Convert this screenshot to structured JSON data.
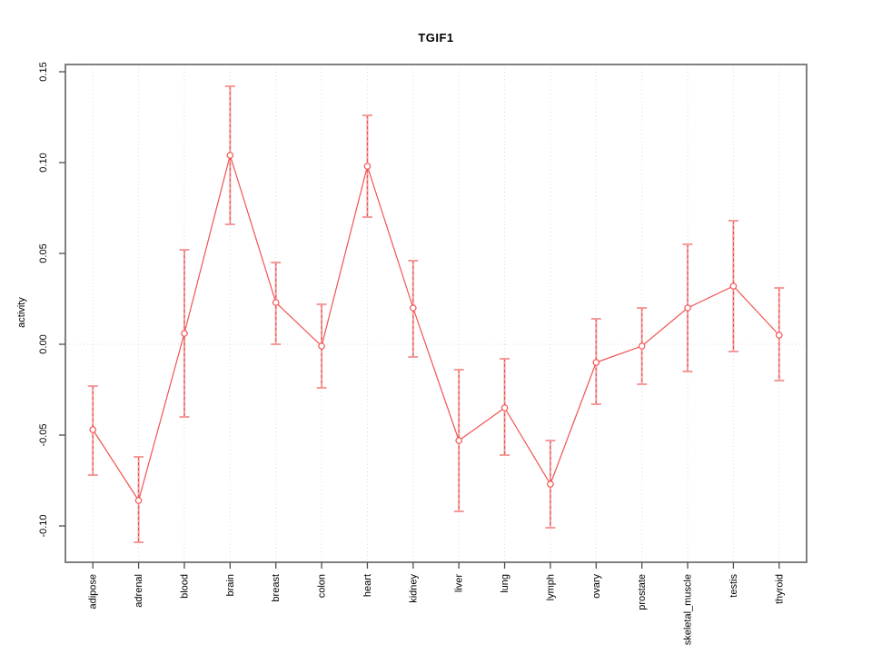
{
  "figure": {
    "title": "TGIF1"
  },
  "chart_data": {
    "type": "line",
    "title": "TGIF1",
    "xlabel": "",
    "ylabel": "activity",
    "categories": [
      "adipose",
      "adrenal",
      "blood",
      "brain",
      "breast",
      "colon",
      "heart",
      "kidney",
      "liver",
      "lung",
      "lymph",
      "ovary",
      "prostate",
      "skeletal_muscle",
      "testis",
      "thyroid"
    ],
    "series": [
      {
        "name": "TGIF1",
        "values": [
          -0.047,
          -0.086,
          0.006,
          0.104,
          0.023,
          -0.001,
          0.098,
          0.02,
          -0.053,
          -0.035,
          -0.077,
          -0.01,
          -0.001,
          0.02,
          0.032,
          0.005
        ],
        "upper": [
          -0.023,
          -0.062,
          0.052,
          0.142,
          0.045,
          0.022,
          0.126,
          0.046,
          -0.014,
          -0.008,
          -0.053,
          0.014,
          0.02,
          0.055,
          0.068,
          0.031
        ],
        "lower": [
          -0.072,
          -0.109,
          -0.04,
          0.066,
          0.0,
          -0.024,
          0.07,
          -0.007,
          -0.092,
          -0.061,
          -0.101,
          -0.033,
          -0.022,
          -0.015,
          -0.004,
          -0.02
        ]
      }
    ],
    "yticks": [
      -0.1,
      -0.05,
      0.0,
      0.05,
      0.1,
      0.15
    ],
    "ytick_labels": [
      "-0.10",
      "-0.05",
      "0.00",
      "0.05",
      "0.10",
      "0.15"
    ],
    "ylim": [
      -0.12,
      0.154
    ],
    "xlim_units": [
      0.4,
      16.6
    ],
    "grid": {
      "vertical_dotted_per_category": true,
      "horizontal_dotted_zero_line": true
    },
    "legend": "none",
    "marker": "open-circle",
    "colors": {
      "line": "#f25252",
      "marker": "#f25252",
      "error_bar": "#f59b9b",
      "error_bar_dash": "#e35050",
      "grid": "#dcdcdc",
      "box": "#808080",
      "tick": "#4d4d4d",
      "text": "#000000",
      "background": "#ffffff"
    }
  }
}
